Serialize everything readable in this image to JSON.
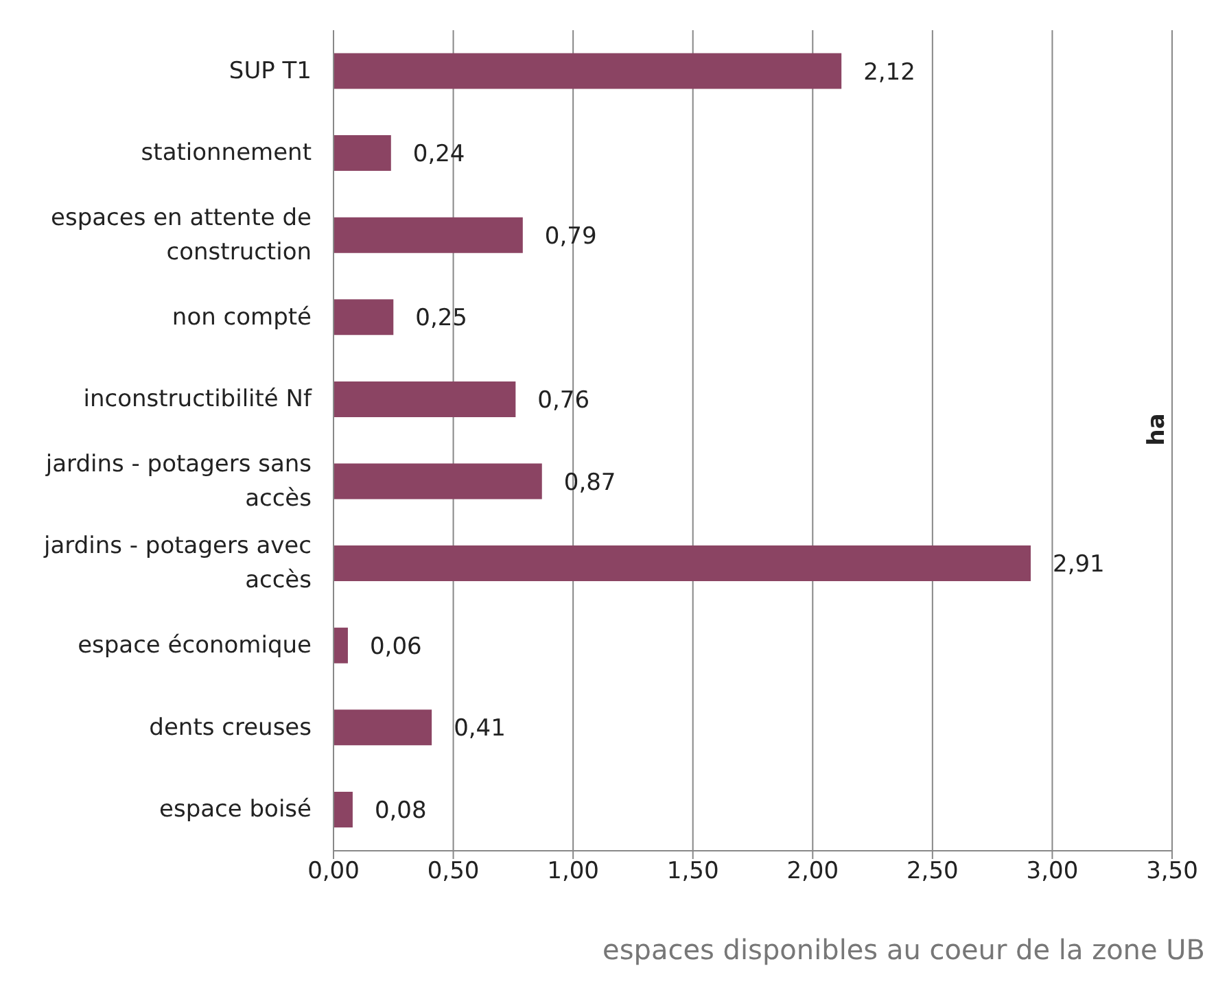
{
  "chart_data": {
    "type": "bar",
    "orientation": "horizontal",
    "xlabel": "espaces disponibles au coeur de la zone UB",
    "ylabel": "ha",
    "categories": [
      "SUP T1",
      "stationnement",
      "espaces en attente de construction",
      "non compté",
      "inconstructibilité Nf",
      "jardins - potagers sans accès",
      "jardins - potagers avec accès",
      "espace économique",
      "dents creuses",
      "espace boisé"
    ],
    "values": [
      2.12,
      0.24,
      0.79,
      0.25,
      0.76,
      0.87,
      2.91,
      0.06,
      0.41,
      0.08
    ],
    "value_labels": [
      "2,12",
      "0,24",
      "0,79",
      "0,25",
      "0,76",
      "0,87",
      "2,91",
      "0,06",
      "0,41",
      "0,08"
    ],
    "color": "#8b4463",
    "xlim": [
      0,
      3.5
    ],
    "xticks": [
      {
        "value": 0,
        "label": "0,00"
      },
      {
        "value": 0.5,
        "label": "0,50"
      },
      {
        "value": 1,
        "label": "1,00"
      },
      {
        "value": 1.5,
        "label": "1,50"
      },
      {
        "value": 2,
        "label": "2,00"
      },
      {
        "value": 2.5,
        "label": "2,50"
      },
      {
        "value": 3,
        "label": "3,00"
      },
      {
        "value": 3.5,
        "label": "3,50"
      }
    ],
    "grid": "x"
  }
}
